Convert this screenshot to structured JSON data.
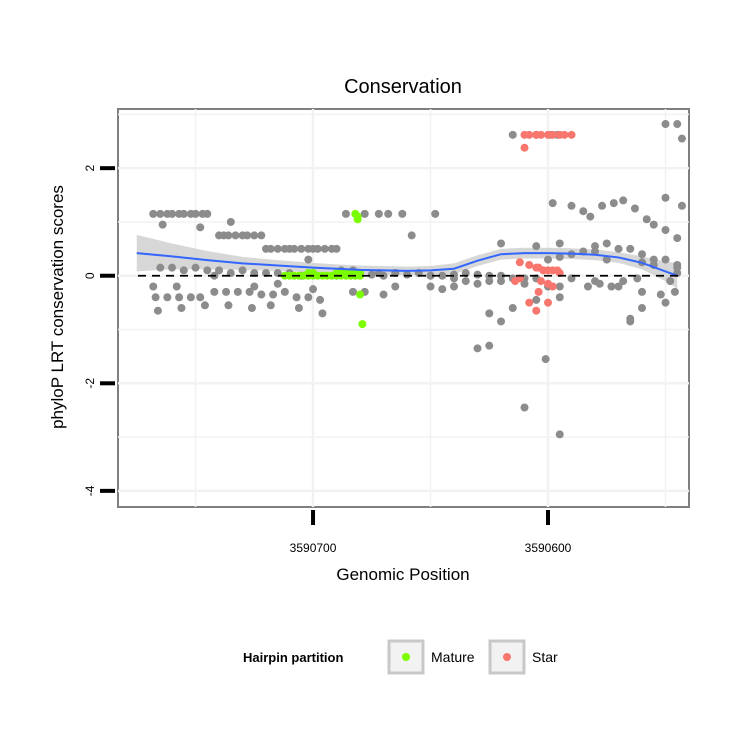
{
  "chart_data": {
    "type": "scatter",
    "title": "Conservation",
    "xlabel": "Genomic Position",
    "ylabel": "phyloP LRT conservation scores",
    "x_reversed": true,
    "xlim": [
      3590783,
      3590540
    ],
    "ylim": [
      -4.3,
      3.1
    ],
    "x_ticks": [
      3590700,
      3590600
    ],
    "x_tick_labels": [
      "3590700",
      "3590600"
    ],
    "y_ticks": [
      2,
      0,
      -2,
      -4
    ],
    "y_tick_labels": [
      "2",
      "0",
      "-2",
      "-4"
    ],
    "reference_line": {
      "y": 0,
      "style": "dashed",
      "color": "#000000"
    },
    "legend": {
      "title": "Hairpin partition",
      "position": "bottom",
      "entries": [
        {
          "label": "Mature",
          "color": "#7CFC00"
        },
        {
          "label": "Star",
          "color": "#F8766D"
        }
      ]
    },
    "colors": {
      "other": "#8C8C8C",
      "Mature": "#7CFC00",
      "Star": "#F8766D",
      "smooth": "#3366FF",
      "ribbon": "#D0D0D0"
    },
    "series": [
      {
        "name": "Other",
        "x": [
          3590768,
          3590765,
          3590762,
          3590760,
          3590757,
          3590755,
          3590752,
          3590750,
          3590747,
          3590745,
          3590740,
          3590738,
          3590736,
          3590733,
          3590730,
          3590728,
          3590725,
          3590722,
          3590720,
          3590718,
          3590715,
          3590712,
          3590710,
          3590708,
          3590705,
          3590702,
          3590700,
          3590698,
          3590695,
          3590692,
          3590690,
          3590765,
          3590760,
          3590755,
          3590750,
          3590745,
          3590740,
          3590735,
          3590730,
          3590725,
          3590720,
          3590715,
          3590710,
          3590705,
          3590700,
          3590767,
          3590762,
          3590757,
          3590752,
          3590748,
          3590742,
          3590737,
          3590732,
          3590727,
          3590722,
          3590717,
          3590712,
          3590707,
          3590702,
          3590697,
          3590766,
          3590756,
          3590746,
          3590736,
          3590726,
          3590718,
          3590706,
          3590696,
          3590768,
          3590758,
          3590742,
          3590725,
          3590715,
          3590700,
          3590764,
          3590748,
          3590735,
          3590702,
          3590690,
          3590685,
          3590680,
          3590675,
          3590670,
          3590665,
          3590660,
          3590655,
          3590650,
          3590645,
          3590640,
          3590635,
          3590630,
          3590625,
          3590683,
          3590678,
          3590670,
          3590665,
          3590650,
          3590645,
          3590640,
          3590688,
          3590683,
          3590672,
          3590665,
          3590650,
          3590686,
          3590678,
          3590672,
          3590668,
          3590662,
          3590658,
          3590648,
          3590640,
          3590635,
          3590625,
          3590620,
          3590615,
          3590610,
          3590605,
          3590600,
          3590595,
          3590590,
          3590585,
          3590580,
          3590575,
          3590570,
          3590565,
          3590560,
          3590555,
          3590550,
          3590545,
          3590620,
          3590605,
          3590598,
          3590590,
          3590585,
          3590582,
          3590577,
          3590572,
          3590568,
          3590563,
          3590558,
          3590555,
          3590550,
          3590545,
          3590630,
          3590620,
          3590610,
          3590600,
          3590590,
          3590580,
          3590570,
          3590560,
          3590552,
          3590546,
          3590625,
          3590615,
          3590605,
          3590595,
          3590583,
          3590578,
          3590573,
          3590568,
          3590562,
          3590548,
          3590630,
          3590625,
          3590620,
          3590595,
          3590580,
          3590575,
          3590560,
          3590555,
          3590565,
          3590550,
          3590545,
          3590615,
          3590605,
          3590599,
          3590596,
          3590610,
          3590601,
          3590595,
          3590550,
          3590545,
          3590543,
          3590550,
          3590565,
          3590595,
          3590543,
          3590560,
          3590545
        ],
        "y": [
          1.15,
          1.15,
          1.15,
          1.15,
          1.15,
          1.15,
          1.15,
          1.15,
          1.15,
          1.15,
          0.75,
          0.75,
          0.75,
          0.75,
          0.75,
          0.75,
          0.75,
          0.75,
          0.5,
          0.5,
          0.5,
          0.5,
          0.5,
          0.5,
          0.5,
          0.5,
          0.5,
          0.5,
          0.5,
          0.5,
          0.5,
          0.15,
          0.15,
          0.1,
          0.15,
          0.1,
          0.1,
          0.05,
          0.1,
          0.05,
          0.05,
          0.05,
          0.05,
          0.0,
          0.05,
          -0.4,
          -0.4,
          -0.4,
          -0.4,
          -0.4,
          -0.3,
          -0.3,
          -0.3,
          -0.3,
          -0.35,
          -0.35,
          -0.3,
          -0.4,
          -0.4,
          -0.45,
          -0.65,
          -0.6,
          -0.55,
          -0.55,
          -0.6,
          -0.55,
          -0.6,
          -0.7,
          -0.2,
          -0.2,
          0.0,
          -0.2,
          -0.15,
          -0.25,
          0.95,
          0.9,
          1.0,
          0.3,
          0.0,
          0.02,
          0.05,
          0.02,
          0.0,
          0.05,
          0.02,
          0.05,
          0.0,
          0.0,
          0.02,
          0.05,
          0.02,
          0.0,
          -0.3,
          -0.3,
          -0.35,
          -0.2,
          -0.2,
          -0.25,
          -0.2,
          0.1,
          0.1,
          0.05,
          0.05,
          0.0,
          1.15,
          1.15,
          1.15,
          1.15,
          1.15,
          0.75,
          1.15,
          -0.05,
          -0.1,
          -0.1,
          0.0,
          -0.05,
          -0.05,
          -0.05,
          0.3,
          0.35,
          0.4,
          0.45,
          0.55,
          0.6,
          0.5,
          0.5,
          0.4,
          0.3,
          0.3,
          0.2,
          0.6,
          0.55,
          1.35,
          1.3,
          1.2,
          1.1,
          1.3,
          1.35,
          1.4,
          1.25,
          1.05,
          0.95,
          0.85,
          0.7,
          -0.15,
          -0.1,
          -0.15,
          -0.2,
          -0.05,
          -0.1,
          -0.2,
          -0.3,
          -0.35,
          -0.3,
          -0.7,
          -0.6,
          -0.45,
          -0.4,
          -0.2,
          -0.15,
          -0.2,
          -0.1,
          -0.05,
          -0.1,
          -1.35,
          -1.3,
          -0.85,
          0.6,
          0.45,
          0.3,
          0.25,
          0.2,
          -0.8,
          -0.5,
          0.05,
          2.62,
          2.62,
          2.62,
          2.62,
          -2.45,
          -1.55,
          -2.95,
          2.82,
          2.82,
          2.55,
          1.45,
          -0.85,
          -0.2,
          1.3,
          -0.6,
          0.15
        ],
        "color": "#8C8C8C"
      },
      {
        "name": "Mature",
        "x": [
          3590712,
          3590710,
          3590708,
          3590706,
          3590704,
          3590702,
          3590700,
          3590698,
          3590696,
          3590694,
          3590692,
          3590690,
          3590688,
          3590686,
          3590684,
          3590682,
          3590680,
          3590702,
          3590700,
          3590690,
          3590688,
          3590686,
          3590684,
          3590682,
          3590680,
          3590681,
          3590681,
          3590682,
          3590680,
          3590679
        ],
        "y": [
          0.0,
          0.0,
          0.0,
          0.0,
          0.0,
          0.0,
          0.0,
          0.0,
          0.0,
          0.0,
          0.0,
          0.0,
          0.0,
          0.0,
          0.0,
          0.0,
          0.0,
          0.05,
          0.05,
          0.05,
          0.05,
          0.05,
          0.05,
          0.05,
          0.05,
          1.05,
          1.1,
          1.15,
          -0.35,
          -0.9
        ],
        "color": "#7CFC00"
      },
      {
        "name": "Star",
        "x": [
          3590610,
          3590608,
          3590605,
          3590603,
          3590600,
          3590598,
          3590595,
          3590593,
          3590590,
          3590610,
          3590612,
          3590608,
          3590605,
          3590604,
          3590602,
          3590600,
          3590598,
          3590596,
          3590595,
          3590603,
          3590600,
          3590598,
          3590604,
          3590614,
          3590612,
          3590608,
          3590605,
          3590600
        ],
        "y": [
          2.62,
          2.62,
          2.62,
          2.62,
          2.62,
          2.62,
          2.62,
          2.62,
          2.62,
          2.38,
          0.25,
          0.2,
          0.15,
          0.15,
          0.1,
          0.1,
          0.1,
          0.1,
          0.05,
          -0.1,
          -0.15,
          -0.2,
          -0.3,
          -0.1,
          -0.05,
          -0.5,
          -0.65,
          -0.5
        ],
        "color": "#F8766D"
      }
    ],
    "smooth": {
      "x": [
        3590775,
        3590760,
        3590745,
        3590730,
        3590715,
        3590700,
        3590690,
        3590680,
        3590670,
        3590660,
        3590650,
        3590640,
        3590630,
        3590620,
        3590610,
        3590600,
        3590590,
        3590580,
        3590570,
        3590560,
        3590550,
        3590545
      ],
      "y": [
        0.42,
        0.36,
        0.29,
        0.23,
        0.19,
        0.15,
        0.13,
        0.11,
        0.1,
        0.09,
        0.1,
        0.13,
        0.28,
        0.4,
        0.42,
        0.42,
        0.41,
        0.39,
        0.34,
        0.24,
        0.08,
        0.0
      ],
      "se": [
        0.34,
        0.24,
        0.17,
        0.12,
        0.1,
        0.09,
        0.08,
        0.08,
        0.08,
        0.08,
        0.08,
        0.1,
        0.1,
        0.1,
        0.1,
        0.1,
        0.1,
        0.1,
        0.1,
        0.12,
        0.18,
        0.24
      ]
    }
  }
}
